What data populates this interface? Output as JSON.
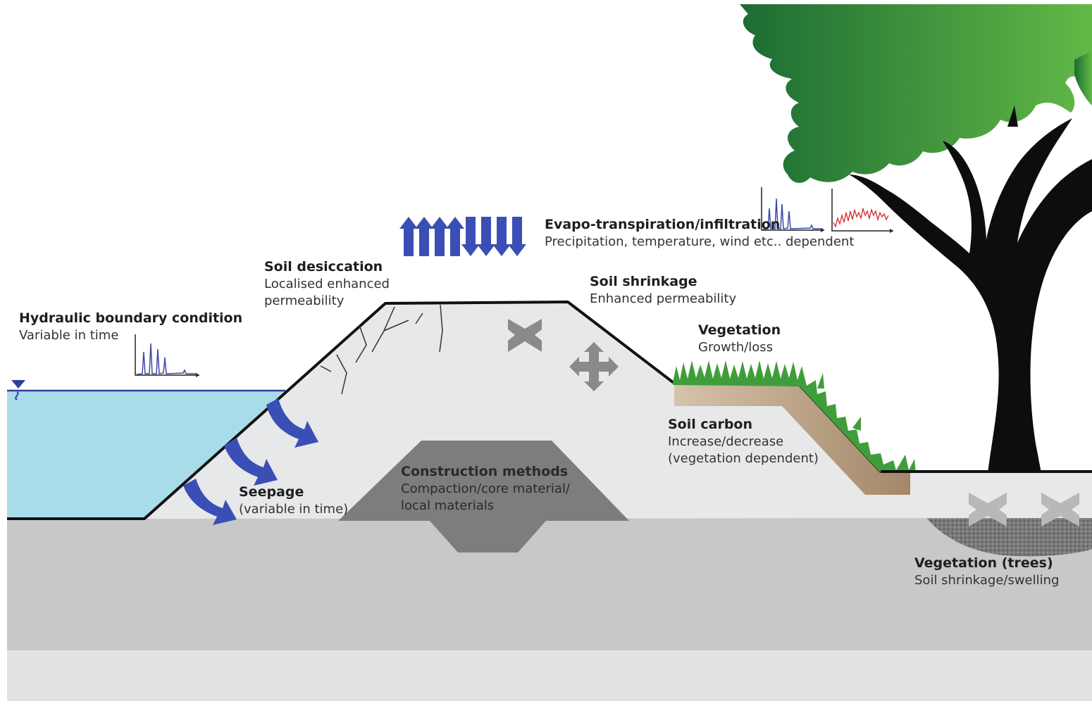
{
  "colors": {
    "water": "#a9dce9",
    "water_line": "#2e3f9c",
    "levee": "#e7e8e9",
    "ground": "#c8c8c8",
    "bottom": "#e2e2e2",
    "core": "#7d7d7d",
    "arrow": "#3a4fb5",
    "grass": "#3f9e3a",
    "soil_carbon": "#c8b39a",
    "tree_trunk": "#0d0d0d",
    "foliage_light": "#62b946",
    "foliage_dark": "#1c6b33",
    "tree_root_zone": "#7a7a7a",
    "spark_blue": "#3a4aa8",
    "spark_red": "#d8282c"
  },
  "icons": [
    "water-level-icon",
    "crack-icon",
    "shrink-icon",
    "swell-icon",
    "seepage-arrow-icon",
    "evapo-arrow-icon",
    "sparkline-icon"
  ],
  "labels": {
    "hydraulic": {
      "title": "Hydraulic boundary condition",
      "lines": [
        "Variable in time"
      ]
    },
    "desiccation": {
      "title": "Soil desiccation",
      "lines": [
        "Localised enhanced",
        "permeability"
      ]
    },
    "evapo": {
      "title": "Evapo-transpiration/infiltration",
      "lines": [
        "Precipitation, temperature, wind etc.. dependent"
      ]
    },
    "shrinkage": {
      "title": "Soil shrinkage",
      "lines": [
        "Enhanced permeability"
      ]
    },
    "vegetation": {
      "title": "Vegetation",
      "lines": [
        "Growth/loss"
      ]
    },
    "carbon": {
      "title": "Soil carbon",
      "lines": [
        "Increase/decrease",
        "(vegetation dependent)"
      ]
    },
    "construction": {
      "title": "Construction methods",
      "lines": [
        "Compaction/core material/",
        "local materials"
      ]
    },
    "seepage": {
      "title": "Seepage",
      "lines": [
        "(variable in time)"
      ]
    },
    "trees": {
      "title": "Vegetation (trees)",
      "lines": [
        "Soil shrinkage/swelling"
      ]
    }
  }
}
